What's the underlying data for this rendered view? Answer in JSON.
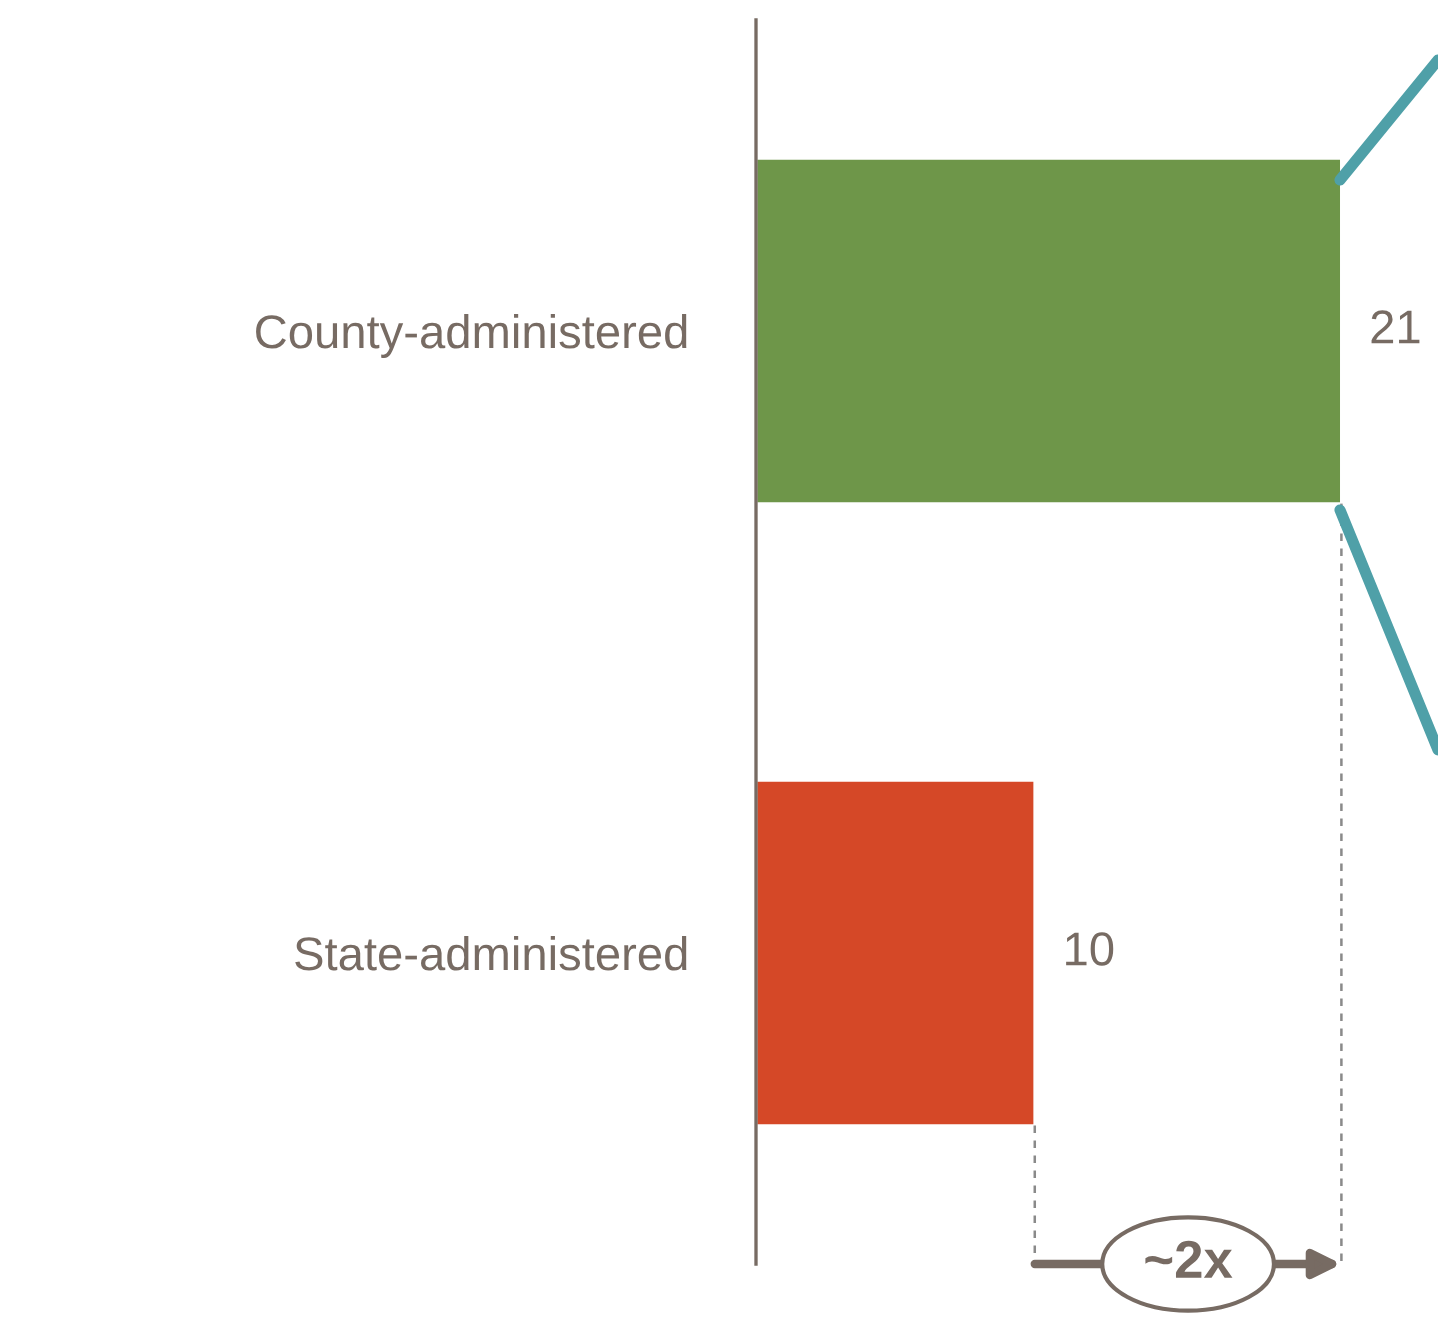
{
  "chart_data": {
    "type": "bar",
    "orientation": "horizontal",
    "categories": [
      "County-administered",
      "State-administered"
    ],
    "values": [
      21,
      10
    ],
    "colors": [
      "#6e9649",
      "#d54827"
    ],
    "data_labels": true,
    "annotations": [
      "~2x"
    ],
    "ref_lines": [
      {
        "axis": "x",
        "value": 10,
        "color": "#8a8a8a",
        "line_style": "dashed"
      },
      {
        "axis": "x",
        "value": 21,
        "color": "#8a8a8a",
        "line_style": "dashed"
      }
    ],
    "grid": false,
    "tick_labels": "y"
  }
}
